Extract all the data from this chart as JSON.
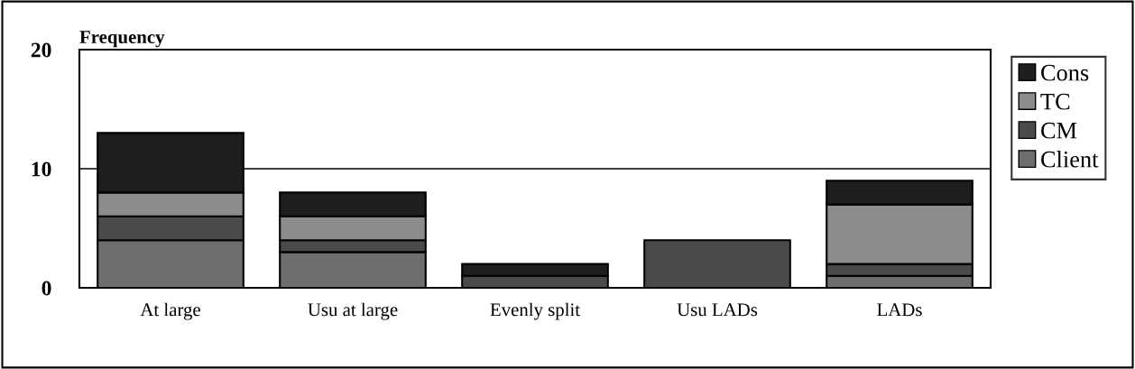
{
  "chart_data": {
    "type": "bar",
    "stacked": true,
    "ylabel": "Frequency",
    "categories": [
      "At large",
      "Usu at large",
      "Evenly split",
      "Usu LADs",
      "LADs"
    ],
    "series": [
      {
        "name": "Client",
        "color": "#6e6e6e",
        "values": [
          4,
          3,
          0,
          0,
          1
        ]
      },
      {
        "name": "CM",
        "color": "#4a4a4a",
        "values": [
          2,
          1,
          1,
          4,
          1
        ]
      },
      {
        "name": "TC",
        "color": "#8c8c8c",
        "values": [
          2,
          2,
          0,
          0,
          5
        ]
      },
      {
        "name": "Cons",
        "color": "#1e1e1e",
        "values": [
          5,
          2,
          1,
          0,
          2
        ]
      }
    ],
    "ylim": [
      0,
      20
    ],
    "yticks": [
      0,
      10,
      20
    ],
    "grid": "y",
    "legend": "right"
  }
}
